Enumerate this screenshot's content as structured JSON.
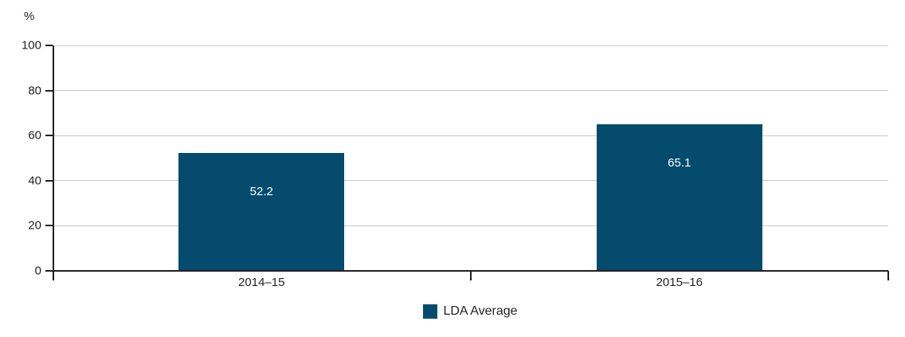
{
  "chart_data": {
    "type": "bar",
    "title": "",
    "ylabel": "%",
    "xlabel": "",
    "ylim": [
      0,
      100
    ],
    "yticks": [
      0,
      20,
      40,
      60,
      80,
      100
    ],
    "categories": [
      "2014–15",
      "2015–16"
    ],
    "series": [
      {
        "name": "LDA Average",
        "values": [
          52.2,
          65.1
        ]
      }
    ],
    "value_labels": [
      "52.2",
      "65.1"
    ],
    "grid": true,
    "legend_position": "bottom",
    "colors": {
      "bar": "#054B6E",
      "axis": "#231F20",
      "gridline": "#C9C9C9",
      "value_label_text": "#FFFFFF",
      "background": "#FFFFFF"
    }
  }
}
